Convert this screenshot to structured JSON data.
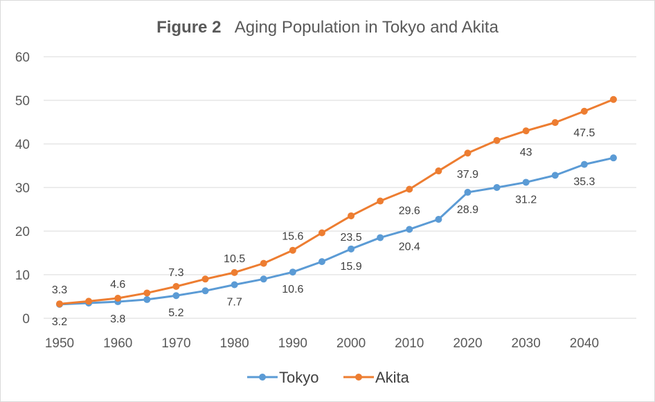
{
  "chart_data": {
    "type": "line",
    "title_prefix": "Figure 2",
    "title": "Aging Population in Tokyo and Akita",
    "x": [
      1950,
      1955,
      1960,
      1965,
      1970,
      1975,
      1980,
      1985,
      1990,
      1995,
      2000,
      2005,
      2010,
      2015,
      2020,
      2025,
      2030,
      2035,
      2040,
      2045
    ],
    "x_ticks": [
      "1950",
      "1960",
      "1970",
      "1980",
      "1990",
      "2000",
      "2010",
      "2020",
      "2030",
      "2040"
    ],
    "y_ticks": [
      "0",
      "10",
      "20",
      "30",
      "40",
      "50",
      "60"
    ],
    "ylim": [
      0,
      60
    ],
    "grid": true,
    "legend_position": "bottom",
    "series": [
      {
        "name": "Tokyo",
        "color": "#5b9bd5",
        "values": [
          3.2,
          3.5,
          3.8,
          4.3,
          5.2,
          6.3,
          7.7,
          9.0,
          10.6,
          13.0,
          15.9,
          18.5,
          20.4,
          22.7,
          28.9,
          30.0,
          31.2,
          32.8,
          35.3,
          36.8
        ],
        "labels": [
          {
            "i": 0,
            "text": "3.2"
          },
          {
            "i": 2,
            "text": "3.8"
          },
          {
            "i": 4,
            "text": "5.2"
          },
          {
            "i": 6,
            "text": "7.7"
          },
          {
            "i": 8,
            "text": "10.6"
          },
          {
            "i": 10,
            "text": "15.9"
          },
          {
            "i": 12,
            "text": "20.4"
          },
          {
            "i": 14,
            "text": "28.9"
          },
          {
            "i": 16,
            "text": "31.2"
          },
          {
            "i": 18,
            "text": "35.3"
          }
        ]
      },
      {
        "name": "Akita",
        "color": "#ed7d31",
        "values": [
          3.3,
          3.9,
          4.6,
          5.8,
          7.3,
          9.0,
          10.5,
          12.6,
          15.6,
          19.6,
          23.5,
          26.9,
          29.6,
          33.8,
          37.9,
          40.8,
          43.0,
          44.9,
          47.5,
          50.2
        ],
        "labels": [
          {
            "i": 0,
            "text": "3.3"
          },
          {
            "i": 2,
            "text": "4.6"
          },
          {
            "i": 4,
            "text": "7.3"
          },
          {
            "i": 6,
            "text": "10.5"
          },
          {
            "i": 8,
            "text": "15.6"
          },
          {
            "i": 10,
            "text": "23.5"
          },
          {
            "i": 12,
            "text": "29.6"
          },
          {
            "i": 14,
            "text": "37.9"
          },
          {
            "i": 16,
            "text": "43"
          },
          {
            "i": 18,
            "text": "47.5"
          }
        ]
      }
    ]
  }
}
